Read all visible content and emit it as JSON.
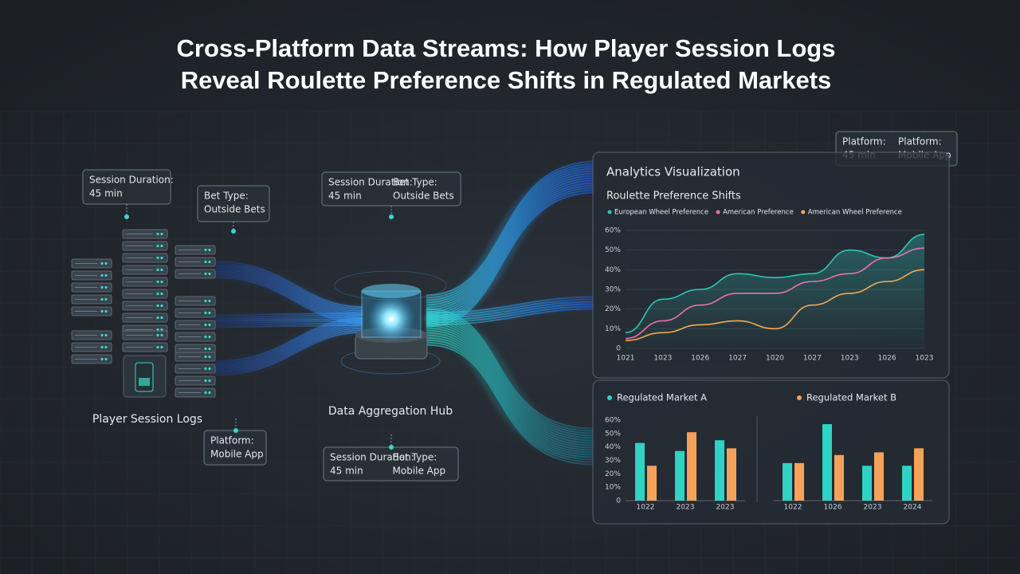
{
  "title_lines": [
    "Cross-Platform Data Streams: How Player Session Logs",
    "Reveal Roulette Preference Shifts in Regulated Markets"
  ],
  "callouts": [
    {
      "rows": [
        [
          "Session Duration:"
        ],
        [
          "45 min"
        ]
      ]
    },
    {
      "rows": [
        [
          "Bet Type:"
        ],
        [
          "Outside Bets"
        ]
      ]
    },
    {
      "rows": [
        [
          "Session Duration:",
          "Bet Type:"
        ],
        [
          "45 min",
          "Outside Bets"
        ]
      ]
    },
    {
      "rows": [
        [
          "Platform:",
          "Platform:"
        ],
        [
          "45 min",
          "Mobile App"
        ]
      ]
    },
    {
      "rows": [
        [
          "Platform:"
        ],
        [
          "Mobile App"
        ]
      ]
    },
    {
      "rows": [
        [
          "Session Duration:",
          "Bet Type:"
        ],
        [
          "45 min",
          "Mobile App"
        ]
      ]
    }
  ],
  "nodes": [
    {
      "label": "Player Session Logs"
    },
    {
      "label": "Data Aggregation Hub"
    }
  ],
  "line_panel": {
    "title": "Analytics Visualization",
    "subtitle": "Roulette Preference Shifts",
    "categories": [
      "1021",
      "1023",
      "1026",
      "1027",
      "1020",
      "1027",
      "1023",
      "1026",
      "1023"
    ],
    "ylim": [
      0,
      60
    ],
    "yticks": [
      0,
      {
        "value": 10,
        "label": "10%"
      },
      {
        "value": 20,
        "label": "20%"
      },
      {
        "value": 30,
        "label": "30%"
      },
      {
        "value": 40,
        "label": "40%"
      },
      {
        "value": 50,
        "label": "50%"
      },
      {
        "value": 60,
        "label": "60%"
      }
    ],
    "series": [
      {
        "name": "European Wheel Preference",
        "color": "#2ec4b6",
        "values": [
          8,
          25,
          30,
          38,
          36,
          38,
          50,
          46,
          58
        ]
      },
      {
        "name": "American Preference",
        "color": "#ef6fa8",
        "values": [
          5,
          14,
          22,
          28,
          28,
          34,
          38,
          46,
          51
        ]
      },
      {
        "name": "American Wheel Preference",
        "color": "#f2a955",
        "values": [
          4,
          8,
          12,
          14,
          10,
          22,
          28,
          34,
          40
        ]
      }
    ]
  },
  "bar_panel": {
    "legend": [
      {
        "name": "Regulated Market A",
        "color": "#2ed3c6"
      },
      {
        "name": "Regulated Market B",
        "color": "#f4a25a"
      }
    ],
    "ylim": [
      0,
      60
    ],
    "yticks": [
      0,
      {
        "value": 10,
        "label": "10%"
      },
      {
        "value": 20,
        "label": "20%"
      },
      {
        "value": 30,
        "label": "30%"
      },
      {
        "value": 40,
        "label": "40%"
      },
      {
        "value": 50,
        "label": "50%"
      },
      {
        "value": 60,
        "label": "60%"
      }
    ],
    "groups": [
      {
        "categories": [
          "1022",
          "2023",
          "2023"
        ],
        "series": [
          {
            "color": "#2ed3c6",
            "values": [
              43,
              37,
              45
            ]
          },
          {
            "color": "#f4a25a",
            "values": [
              26,
              51,
              39
            ]
          }
        ]
      },
      {
        "categories": [
          "1022",
          "1026",
          "2023",
          "2024"
        ],
        "series": [
          {
            "color": "#2ed3c6",
            "values": [
              28,
              57,
              26,
              26
            ]
          },
          {
            "color": "#f4a25a",
            "values": [
              28,
              34,
              36,
              39
            ]
          }
        ]
      }
    ]
  }
}
